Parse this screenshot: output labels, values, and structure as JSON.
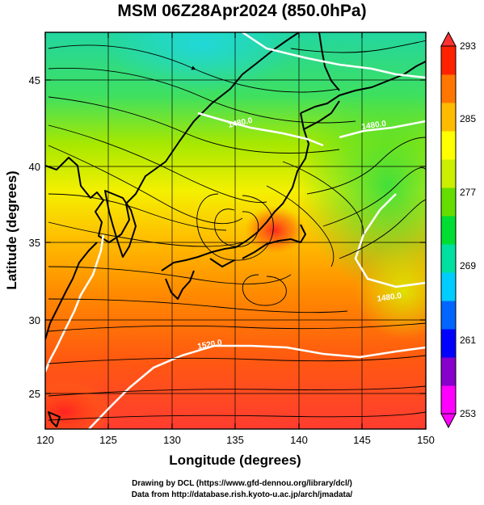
{
  "title": "MSM 06Z28Apr2024 (850.0hPa)",
  "x_axis": {
    "label": "Longitude (degrees)",
    "ticks": [
      "120",
      "125",
      "130",
      "135",
      "140",
      "145",
      "150"
    ],
    "range": [
      120,
      150
    ]
  },
  "y_axis": {
    "label": "Latitude  (degrees)",
    "ticks": [
      "25",
      "30",
      "35",
      "40",
      "45"
    ],
    "range": [
      22.4,
      47.6
    ]
  },
  "colorbar": {
    "ticks": [
      "293",
      "285",
      "277",
      "269",
      "261",
      "253"
    ],
    "range": [
      253,
      293
    ],
    "colors": [
      "#ff00ff",
      "#8800cc",
      "#0000ff",
      "#0066ff",
      "#00ccff",
      "#00e0a0",
      "#00dd33",
      "#66dd00",
      "#ccee00",
      "#ffff00",
      "#ffbb00",
      "#ff7700",
      "#ff2200"
    ]
  },
  "contour_labels": [
    "1480.0",
    "1480.0",
    "1480.0",
    "1520.0"
  ],
  "credits": {
    "line1": "Drawing by DCL (https://www.gfd-dennou.org/library/dcl/)",
    "line2": "Data from http://database.rish.kyoto-u.ac.jp/arch/jmadata/"
  }
}
